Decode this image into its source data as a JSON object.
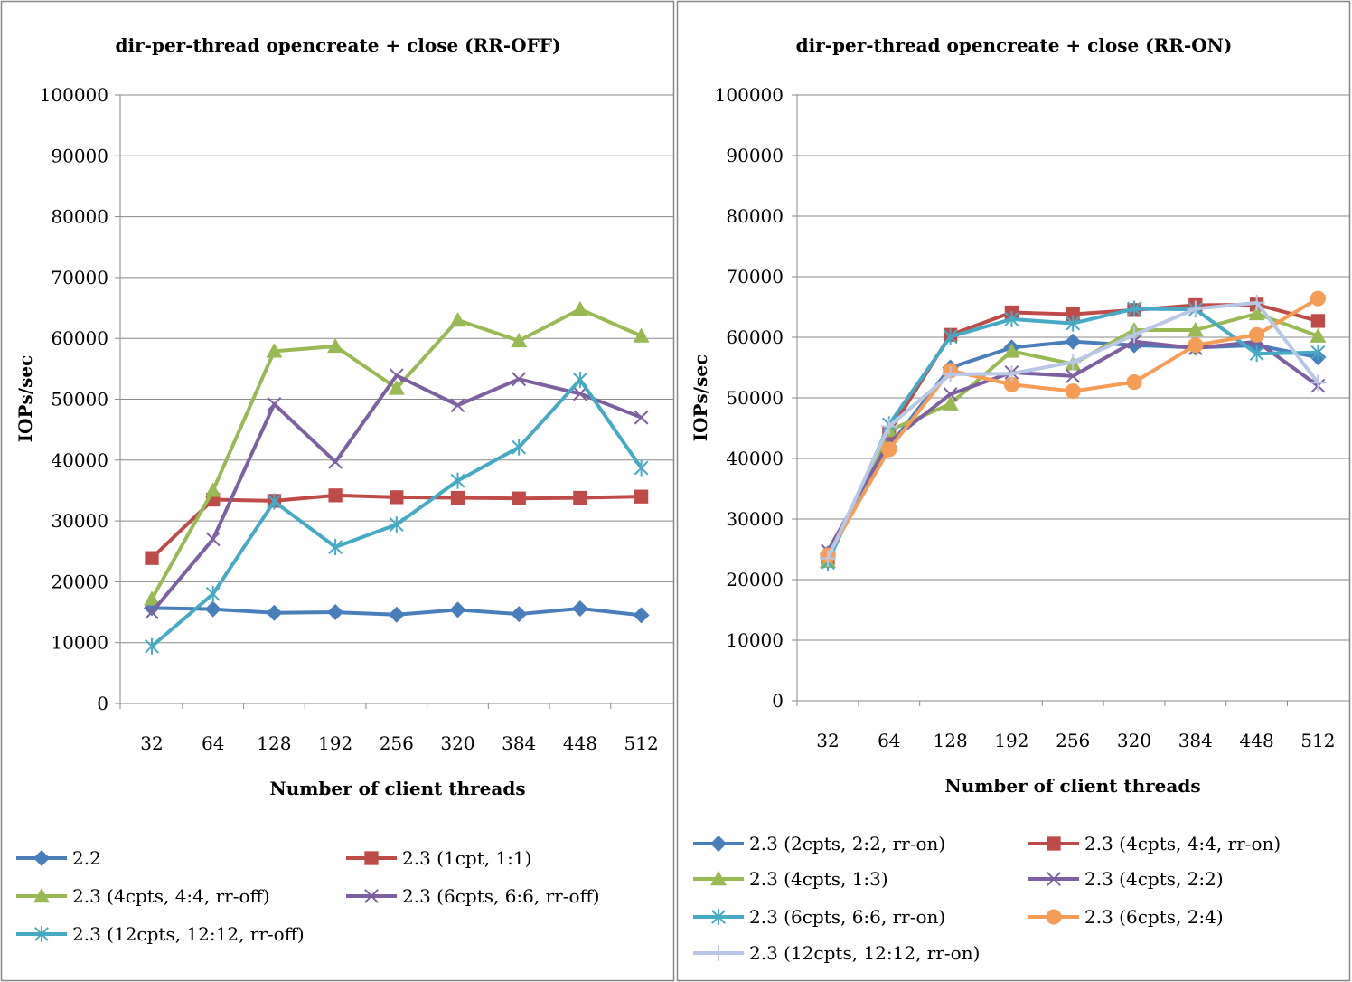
{
  "chart_data": [
    {
      "type": "line",
      "title": "dir-per-thread opencreate + close (RR-OFF)",
      "xlabel": "Number of client threads",
      "ylabel": "IOPs/sec",
      "ylim": [
        0,
        100000
      ],
      "yticks": [
        0,
        10000,
        20000,
        30000,
        40000,
        50000,
        60000,
        70000,
        80000,
        90000,
        100000
      ],
      "categories": [
        "32",
        "64",
        "128",
        "192",
        "256",
        "320",
        "384",
        "448",
        "512"
      ],
      "grid": "horizontal",
      "legend_position": "bottom",
      "series": [
        {
          "name": "2.2",
          "color": "#4a7ebb",
          "marker": "diamond",
          "values": [
            15700,
            15500,
            14900,
            15000,
            14600,
            15400,
            14700,
            15600,
            14500
          ]
        },
        {
          "name": "2.3 (1cpt, 1:1)",
          "color": "#be4b48",
          "marker": "square",
          "values": [
            23900,
            33500,
            33300,
            34200,
            33900,
            33800,
            33700,
            33800,
            34000
          ]
        },
        {
          "name": "2.3 (4cpts, 4:4, rr-off)",
          "color": "#98b954",
          "marker": "triangle",
          "values": [
            17200,
            35000,
            57900,
            58700,
            51800,
            63000,
            59600,
            64800,
            60400
          ]
        },
        {
          "name": "2.3 (6cpts, 6:6, rr-off)",
          "color": "#7d60a0",
          "marker": "x",
          "values": [
            15000,
            27000,
            49200,
            39700,
            53900,
            49000,
            53300,
            50900,
            47000
          ]
        },
        {
          "name": "2.3 (12cpts, 12:12, rr-off)",
          "color": "#46aac5",
          "marker": "star",
          "values": [
            9400,
            18000,
            33200,
            25700,
            29400,
            36600,
            42100,
            53200,
            38700
          ]
        }
      ]
    },
    {
      "type": "line",
      "title": "dir-per-thread opencreate + close (RR-ON)",
      "xlabel": "Number of client threads",
      "ylabel": "IOPs/sec",
      "ylim": [
        0,
        100000
      ],
      "yticks": [
        0,
        10000,
        20000,
        30000,
        40000,
        50000,
        60000,
        70000,
        80000,
        90000,
        100000
      ],
      "categories": [
        "32",
        "64",
        "128",
        "192",
        "256",
        "320",
        "384",
        "448",
        "512"
      ],
      "grid": "horizontal",
      "legend_position": "bottom",
      "series": [
        {
          "name": "2.3 (2cpts, 2:2, rr-on)",
          "color": "#4a7ebb",
          "marker": "diamond",
          "values": [
            24300,
            42000,
            55000,
            58300,
            59300,
            58700,
            58300,
            58700,
            56700
          ]
        },
        {
          "name": "2.3 (4cpts, 4:4, rr-on)",
          "color": "#be4b48",
          "marker": "square",
          "values": [
            23500,
            44300,
            60400,
            64100,
            63800,
            64500,
            65300,
            65400,
            62700
          ]
        },
        {
          "name": "2.3 (4cpts, 1:3)",
          "color": "#98b954",
          "marker": "triangle",
          "values": [
            23000,
            44600,
            49000,
            57700,
            55600,
            61200,
            61200,
            63900,
            60200
          ]
        },
        {
          "name": "2.3 (4cpts, 2:2)",
          "color": "#7d60a0",
          "marker": "x",
          "values": [
            24700,
            42700,
            50600,
            54200,
            53600,
            59300,
            58200,
            59300,
            52000
          ]
        },
        {
          "name": "2.3 (6cpts, 6:6, rr-on)",
          "color": "#46aac5",
          "marker": "star",
          "values": [
            22800,
            45600,
            60100,
            63000,
            62300,
            64700,
            64600,
            57300,
            57500
          ]
        },
        {
          "name": "2.3 (6cpts, 2:4)",
          "color": "#f59d56",
          "marker": "circle",
          "values": [
            24000,
            41500,
            54500,
            52200,
            51100,
            52600,
            58700,
            60400,
            66400
          ]
        },
        {
          "name": "2.3 (12cpts, 12:12, rr-on)",
          "color": "#b9c7e6",
          "marker": "plus",
          "values": [
            23500,
            45300,
            53900,
            54000,
            55900,
            60400,
            64700,
            65700,
            52500
          ]
        }
      ]
    }
  ]
}
